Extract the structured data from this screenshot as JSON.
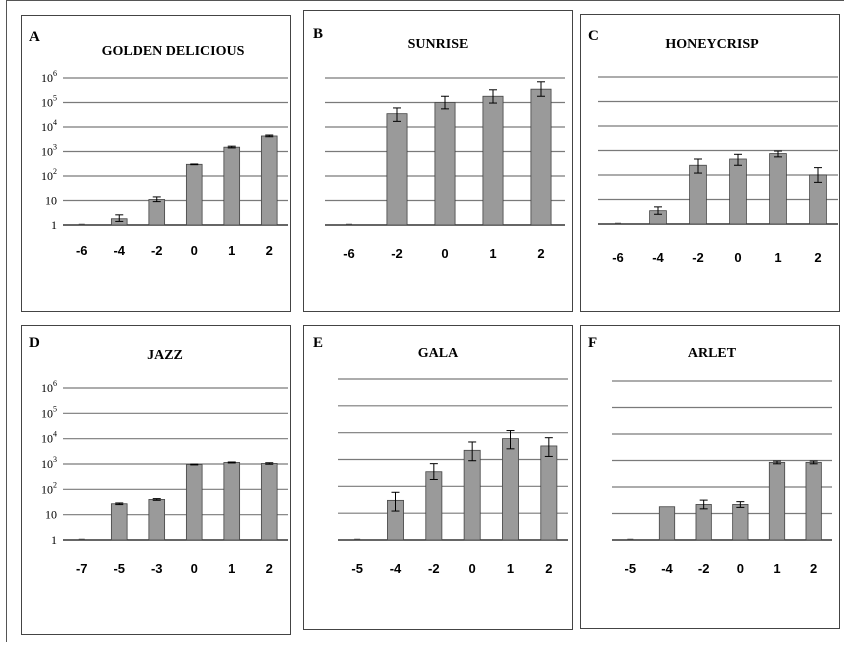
{
  "chart_data": [
    {
      "type": "bar",
      "panel": "A",
      "title": "GOLDEN DELICIOUS",
      "y_scale": "log",
      "ylim": [
        1,
        1000000
      ],
      "y_tick_labels": [
        "1",
        "10",
        "10^2",
        "10^3",
        "10^4",
        "10^5",
        "10^6"
      ],
      "categories": [
        "-6",
        "-4",
        "-2",
        "0",
        "1",
        "2"
      ],
      "values": [
        1,
        1.8,
        11,
        300,
        1500,
        4300
      ],
      "error_low": [
        1,
        1.4,
        9,
        290,
        1400,
        4000
      ],
      "error_high": [
        1,
        2.6,
        14,
        310,
        1650,
        4700
      ]
    },
    {
      "type": "bar",
      "panel": "B",
      "title": "SUNRISE",
      "y_scale": "log",
      "ylim": [
        1,
        1000000
      ],
      "y_tick_labels": [],
      "categories": [
        "-6",
        "-2",
        "0",
        "1",
        "2"
      ],
      "values": [
        1,
        35000,
        100000,
        180000,
        350000
      ],
      "error_low": [
        1,
        17000,
        55000,
        95000,
        180000
      ],
      "error_high": [
        1,
        60000,
        180000,
        330000,
        700000
      ]
    },
    {
      "type": "bar",
      "panel": "C",
      "title": "HONEYCRISP",
      "y_scale": "log",
      "ylim": [
        1,
        1000000
      ],
      "y_tick_labels": [],
      "categories": [
        "-6",
        "-4",
        "-2",
        "0",
        "1",
        "2"
      ],
      "values": [
        1,
        3.5,
        250,
        450,
        750,
        100
      ],
      "error_low": [
        1,
        2.5,
        120,
        250,
        550,
        50
      ],
      "error_high": [
        1,
        5,
        450,
        700,
        950,
        200
      ]
    },
    {
      "type": "bar",
      "panel": "D",
      "title": "JAZZ",
      "y_scale": "log",
      "ylim": [
        1,
        1000000
      ],
      "y_tick_labels": [
        "1",
        "10",
        "10^2",
        "10^3",
        "10^4",
        "10^5",
        "10^6"
      ],
      "categories": [
        "-7",
        "-5",
        "-3",
        "0",
        "1",
        "2"
      ],
      "values": [
        1,
        27,
        40,
        950,
        1150,
        1050
      ],
      "error_low": [
        1,
        25,
        37,
        920,
        1100,
        980
      ],
      "error_high": [
        1,
        29,
        43,
        980,
        1200,
        1120
      ]
    },
    {
      "type": "bar",
      "panel": "E",
      "title": "GALA",
      "y_scale": "log",
      "ylim": [
        1,
        1000000
      ],
      "y_tick_labels": [],
      "categories": [
        "-5",
        "-4",
        "-2",
        "0",
        "1",
        "2"
      ],
      "values": [
        1,
        30,
        350,
        2200,
        6000,
        3200
      ],
      "error_low": [
        1,
        12,
        180,
        900,
        2500,
        1300
      ],
      "error_high": [
        1,
        60,
        700,
        4500,
        12000,
        6500
      ]
    },
    {
      "type": "bar",
      "panel": "F",
      "title": "ARLET",
      "y_scale": "log",
      "ylim": [
        1,
        1000000
      ],
      "y_tick_labels": [],
      "categories": [
        "-5",
        "-4",
        "-2",
        "0",
        "1",
        "2"
      ],
      "values": [
        1,
        18,
        22,
        22,
        850,
        850
      ],
      "error_low": [
        1,
        18,
        15,
        17,
        750,
        750
      ],
      "error_high": [
        1,
        18,
        32,
        28,
        950,
        950
      ]
    }
  ]
}
